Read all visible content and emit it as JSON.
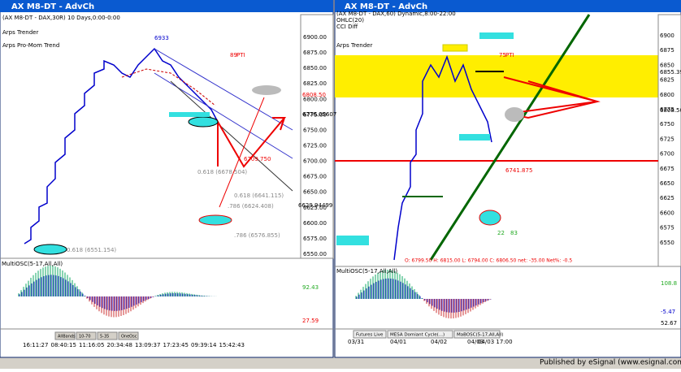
{
  "left_window": {
    "title": "AX M8-DT - AdvCh",
    "header": [
      "(AX M8-DT - DAX,30R) 10 Days,0:00-0:00",
      "Arps Trender",
      "Arps Pro-Mom Trend"
    ],
    "price_axis": [
      "6900.00",
      "6875.00",
      "6850.00",
      "6825.00",
      "6800.00",
      "6775.00",
      "6750.00",
      "6725.00",
      "6700.00",
      "6675.00",
      "6650.00",
      "6625.00",
      "6600.00",
      "6575.00",
      "6550.00"
    ],
    "price_tags": [
      "6808.50",
      "6776.05607",
      "6629.94499"
    ],
    "annotations": [
      "6933",
      "89",
      "PTI",
      "6709.750",
      "0.618 (6678.504)",
      "0.618 (6641.115)",
      ".786 (6624.408)",
      ".786 (6576.855)",
      "0.618 (6551.154)"
    ],
    "osc_title": "MultiOSC(5-17,All,All)",
    "osc_labels": [
      "92.43",
      "27.59"
    ],
    "buttons": [
      "AllBands",
      "10-70",
      "5-35",
      "OneOsc"
    ],
    "time_axis": [
      "16:11:27",
      "08:40:15",
      "11:16:05",
      "20:34:48",
      "13:09:37",
      "17:23:45",
      "09:39:14",
      "15:42:43"
    ]
  },
  "right_window": {
    "title": "AX M8-DT - AdvCh",
    "header": [
      "(AX M8-DT - DAX,60) Dynamic,8:00-22:00",
      "OHLC(20)",
      "CCI Diff",
      "Arps Trender"
    ],
    "price_axis": [
      "6900",
      "6875",
      "6850",
      "6825",
      "6800",
      "6775",
      "6750",
      "6725",
      "6700",
      "6675",
      "6650",
      "6625",
      "6600",
      "6575",
      "6550"
    ],
    "price_tags": [
      "6855.39",
      "6808.50"
    ],
    "annotations": [
      "75",
      "PTI",
      "6741.875",
      "22",
      "83"
    ],
    "ohlc": "O: 6799.50  H: 6815.00  L: 6794.00  C: 6806.50  net: -35.00  Net%: -0.5",
    "osc_title": "MultiOSC(5-17,All,All)",
    "osc_labels": [
      "108.8",
      "-5.47",
      "52.67"
    ],
    "tabs": [
      "Futures Live",
      "MESA Domiant Cycle(...)",
      "MaBOSC(5-17,All,All)"
    ],
    "time_axis": [
      "03/31",
      "04/01",
      "04/02",
      "04/03",
      "04/03 17:00"
    ]
  },
  "footer": "Published by eSignal (www.esignal.com)"
}
